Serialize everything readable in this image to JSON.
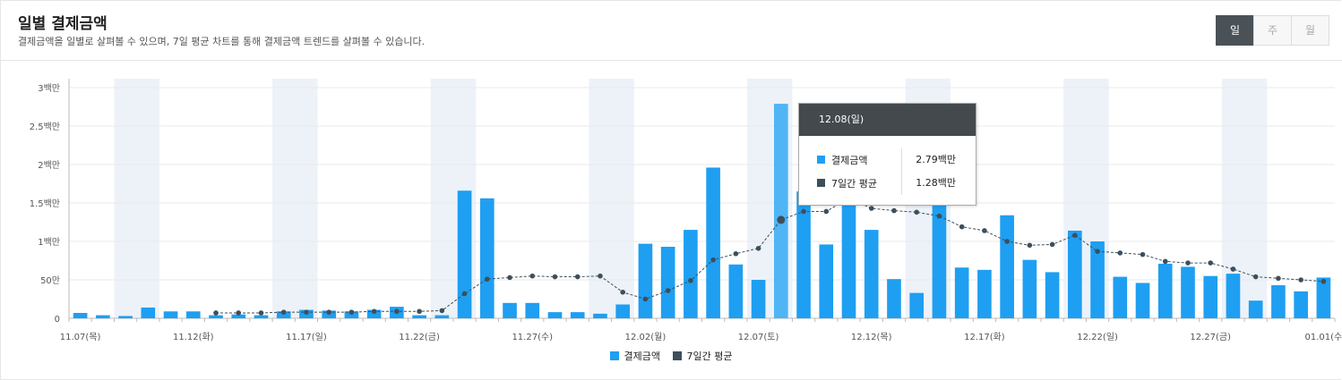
{
  "header": {
    "title": "일별 결제금액",
    "subtitle": "결제금액을 일별로 살펴볼 수 있으며, 7일 평균 차트를 통해 결제금액 트렌드를 살펴볼 수 있습니다."
  },
  "toggle": {
    "day": "일",
    "week": "주",
    "month": "월"
  },
  "colors": {
    "bar": "#1e9ff2",
    "bar_highlight": "#4fb5f5",
    "line": "#3d4f5c",
    "weekend_band": "#edf2f9",
    "grid": "#e9e9e9"
  },
  "tooltip": {
    "date": "12.08(일)",
    "rows": [
      {
        "label": "결제금액",
        "value": "2.79백만"
      },
      {
        "label": "7일간 평균",
        "value": "1.28백만"
      }
    ]
  },
  "legend": {
    "bar_label": "결제금액",
    "line_label": "7일간 평균"
  },
  "chart_data": {
    "type": "bar",
    "ylabel": "",
    "ylim": [
      0,
      3000000
    ],
    "y_ticks": [
      {
        "value": 0,
        "label": "0"
      },
      {
        "value": 500000,
        "label": "50만"
      },
      {
        "value": 1000000,
        "label": "1백만"
      },
      {
        "value": 1500000,
        "label": "1.5백만"
      },
      {
        "value": 2000000,
        "label": "2백만"
      },
      {
        "value": 2500000,
        "label": "2.5백만"
      },
      {
        "value": 3000000,
        "label": "3백만"
      }
    ],
    "x_tick_labels": [
      {
        "index": 0,
        "label": "11.07(목)"
      },
      {
        "index": 5,
        "label": "11.12(화)"
      },
      {
        "index": 10,
        "label": "11.17(일)"
      },
      {
        "index": 15,
        "label": "11.22(금)"
      },
      {
        "index": 20,
        "label": "11.27(수)"
      },
      {
        "index": 25,
        "label": "12.02(월)"
      },
      {
        "index": 30,
        "label": "12.07(토)"
      },
      {
        "index": 35,
        "label": "12.12(목)"
      },
      {
        "index": 40,
        "label": "12.17(화)"
      },
      {
        "index": 45,
        "label": "12.22(일)"
      },
      {
        "index": 50,
        "label": "12.27(금)"
      },
      {
        "index": 55,
        "label": "01.01(수"
      }
    ],
    "weekend_indices": [
      2,
      3,
      9,
      10,
      16,
      17,
      23,
      24,
      30,
      31,
      37,
      38,
      44,
      45,
      51,
      52
    ],
    "highlight_index": 31,
    "series": [
      {
        "name": "결제금액",
        "kind": "bar",
        "values": [
          70000,
          40000,
          30000,
          140000,
          90000,
          90000,
          40000,
          50000,
          40000,
          90000,
          110000,
          100000,
          90000,
          110000,
          150000,
          40000,
          40000,
          1660000,
          1560000,
          200000,
          200000,
          80000,
          80000,
          60000,
          180000,
          970000,
          930000,
          1150000,
          1960000,
          700000,
          500000,
          2790000,
          1650000,
          960000,
          2240000,
          1150000,
          510000,
          330000,
          2460000,
          660000,
          630000,
          1340000,
          760000,
          600000,
          1140000,
          1000000,
          540000,
          460000,
          710000,
          670000,
          550000,
          580000,
          230000,
          430000,
          350000,
          530000
        ]
      },
      {
        "name": "7일간 평균",
        "kind": "line",
        "start_index": 6,
        "values": [
          70000,
          70000,
          70000,
          80000,
          80000,
          80000,
          80000,
          90000,
          90000,
          90000,
          100000,
          320000,
          510000,
          530000,
          550000,
          540000,
          540000,
          550000,
          340000,
          250000,
          360000,
          490000,
          760000,
          840000,
          910000,
          1280000,
          1390000,
          1390000,
          1560000,
          1430000,
          1400000,
          1380000,
          1330000,
          1190000,
          1140000,
          1000000,
          950000,
          960000,
          1080000,
          870000,
          850000,
          830000,
          740000,
          720000,
          720000,
          640000,
          540000,
          520000,
          500000,
          480000
        ]
      }
    ]
  }
}
